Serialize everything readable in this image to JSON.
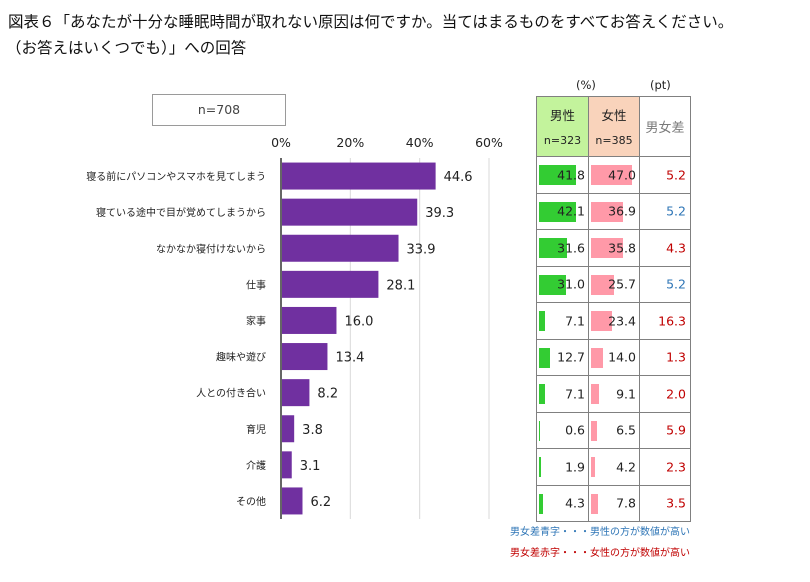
{
  "title": {
    "line1": "図表６「あなたが十分な睡眠時間が取れない原因は何ですか。当てはまるものをすべてお答えください。",
    "line2": "（お答えはいくつでも）」への回答"
  },
  "sample": "n=708",
  "chart_data": {
    "type": "bar",
    "orientation": "horizontal",
    "categories": [
      "寝る前にパソコンやスマホを見てしまう",
      "寝ている途中で目が覚めてしまうから",
      "なかなか寝付けないから",
      "仕事",
      "家事",
      "趣味や遊び",
      "人との付き合い",
      "育児",
      "介護",
      "その他"
    ],
    "values": [
      44.6,
      39.3,
      33.9,
      28.1,
      16.0,
      13.4,
      8.2,
      3.8,
      3.1,
      6.2
    ],
    "value_labels": [
      "44.6",
      "39.3",
      "33.9",
      "28.1",
      "16.0",
      "13.4",
      "8.2",
      "3.8",
      "3.1",
      "6.2"
    ],
    "xlim": [
      0,
      60
    ],
    "xticks": [
      0,
      20,
      40,
      60
    ],
    "xtick_labels": [
      "0%",
      "20%",
      "40%",
      "60%"
    ],
    "grid": true,
    "bar_color": "#7030a0"
  },
  "table": {
    "unit_pct": "(%)",
    "unit_pt": "(pt)",
    "headers": {
      "male": {
        "label": "男性",
        "n": "n=323"
      },
      "female": {
        "label": "女性",
        "n": "n=385"
      },
      "diff": {
        "label": "男女差"
      }
    },
    "male_color": "#33cc33",
    "female_color": "#ff99a8",
    "blue_color": "#2e75b6",
    "red_color": "#c00000",
    "rows": [
      {
        "male": 41.8,
        "male_text": "41.8",
        "female": 47.0,
        "female_text": "47.0",
        "diff": "5.2",
        "diff_color": "red"
      },
      {
        "male": 42.1,
        "male_text": "42.1",
        "female": 36.9,
        "female_text": "36.9",
        "diff": "5.2",
        "diff_color": "blue"
      },
      {
        "male": 31.6,
        "male_text": "31.6",
        "female": 35.8,
        "female_text": "35.8",
        "diff": "4.3",
        "diff_color": "red"
      },
      {
        "male": 31.0,
        "male_text": "31.0",
        "female": 25.7,
        "female_text": "25.7",
        "diff": "5.2",
        "diff_color": "blue"
      },
      {
        "male": 7.1,
        "male_text": "7.1",
        "female": 23.4,
        "female_text": "23.4",
        "diff": "16.3",
        "diff_color": "red"
      },
      {
        "male": 12.7,
        "male_text": "12.7",
        "female": 14.0,
        "female_text": "14.0",
        "diff": "1.3",
        "diff_color": "red"
      },
      {
        "male": 7.1,
        "male_text": "7.1",
        "female": 9.1,
        "female_text": "9.1",
        "diff": "2.0",
        "diff_color": "red"
      },
      {
        "male": 0.6,
        "male_text": "0.6",
        "female": 6.5,
        "female_text": "6.5",
        "diff": "5.9",
        "diff_color": "red"
      },
      {
        "male": 1.9,
        "male_text": "1.9",
        "female": 4.2,
        "female_text": "4.2",
        "diff": "2.3",
        "diff_color": "red"
      },
      {
        "male": 4.3,
        "male_text": "4.3",
        "female": 7.8,
        "female_text": "7.8",
        "diff": "3.5",
        "diff_color": "red"
      }
    ],
    "bar_scale_max": 50
  },
  "notes": {
    "blue": "男女差青字・・・男性の方が数値が高い",
    "red": "男女差赤字・・・女性の方が数値が高い"
  }
}
